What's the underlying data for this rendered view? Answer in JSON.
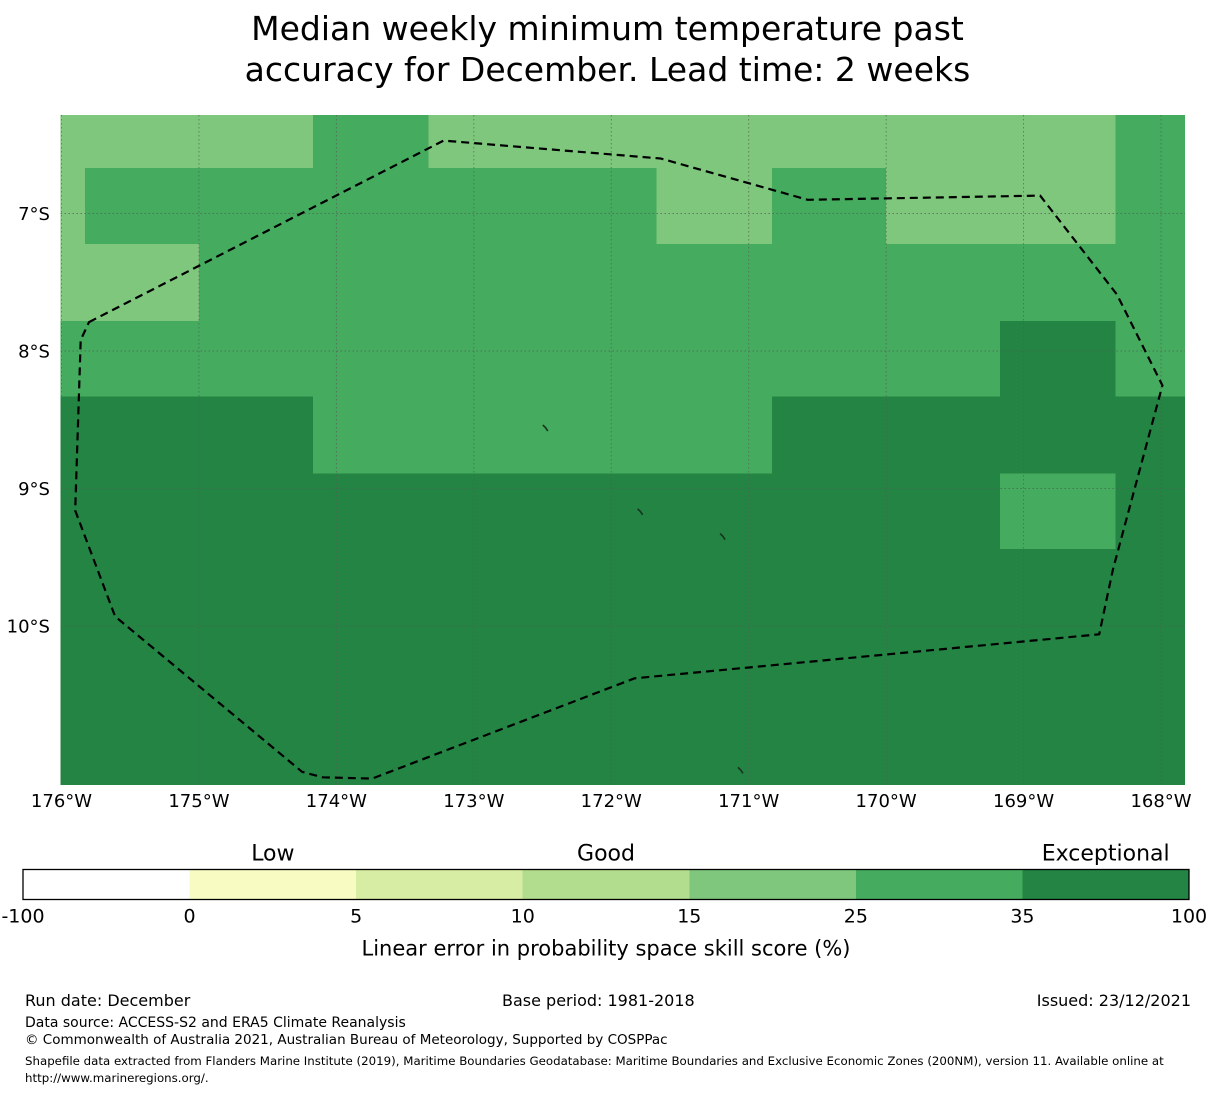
{
  "title": {
    "line1": "Median weekly minimum temperature past",
    "line2": "accuracy for December. Lead time: 2 weeks"
  },
  "footer": {
    "run_date": "Run date: December",
    "base_period": "Base period: 1981-2018",
    "issued": "Issued: 23/12/2021",
    "data_source": "Data source: ACCESS-S2 and ERA5 Climate Reanalysis",
    "copyright": "© Commonwealth of Australia 2021, Australian Bureau of Meteorology, Supported by COSPPac",
    "shapefile_note": "Shapefile data extracted from Flanders Marine Institute (2019), Maritime Boundaries Geodatabase: Maritime Boundaries and Exclusive Economic Zones (200NM), version 11. Available online at http://www.marineregions.org/."
  },
  "chart_data": {
    "type": "heatmap",
    "title": "Median weekly minimum temperature past accuracy for December. Lead time: 2 weeks",
    "x_axis": {
      "tick_labels": [
        "176°W",
        "175°W",
        "174°W",
        "173°W",
        "172°W",
        "171°W",
        "170°W",
        "169°W",
        "168°W"
      ],
      "tick_lons": [
        176,
        175,
        174,
        173,
        172,
        171,
        170,
        169,
        168
      ]
    },
    "y_axis": {
      "tick_labels": [
        "7°S",
        "8°S",
        "9°S",
        "10°S"
      ],
      "tick_lats": [
        7,
        8,
        9,
        10
      ]
    },
    "map_bounds": {
      "lon_west": 176.01,
      "lon_east": 167.82,
      "lat_north": 6.28,
      "lat_south": 11.16
    },
    "grid_on": true,
    "rows": [
      {
        "lat_n": 6.28,
        "lat_s": 6.67,
        "segs": [
          [
            176.01,
            174.17,
            "15-25"
          ],
          [
            174.17,
            173.33,
            "25-35"
          ],
          [
            173.33,
            168.33,
            "15-25"
          ],
          [
            168.33,
            167.82,
            "25-35"
          ]
        ]
      },
      {
        "lat_n": 6.67,
        "lat_s": 7.22,
        "segs": [
          [
            176.01,
            175.83,
            "15-25"
          ],
          [
            175.83,
            171.67,
            "25-35"
          ],
          [
            171.67,
            170.83,
            "15-25"
          ],
          [
            170.83,
            170.0,
            "25-35"
          ],
          [
            170.0,
            168.33,
            "15-25"
          ],
          [
            168.33,
            167.82,
            "25-35"
          ]
        ]
      },
      {
        "lat_n": 7.22,
        "lat_s": 7.78,
        "segs": [
          [
            176.01,
            175.0,
            "15-25"
          ],
          [
            175.0,
            167.82,
            "25-35"
          ]
        ]
      },
      {
        "lat_n": 7.78,
        "lat_s": 8.33,
        "segs": [
          [
            176.01,
            169.17,
            "25-35"
          ],
          [
            169.17,
            168.33,
            "35-100"
          ],
          [
            168.33,
            167.82,
            "25-35"
          ]
        ]
      },
      {
        "lat_n": 8.33,
        "lat_s": 8.89,
        "segs": [
          [
            176.01,
            174.17,
            "35-100"
          ],
          [
            174.17,
            170.83,
            "25-35"
          ],
          [
            170.83,
            167.82,
            "35-100"
          ]
        ]
      },
      {
        "lat_n": 8.89,
        "lat_s": 9.44,
        "segs": [
          [
            176.01,
            169.17,
            "35-100"
          ],
          [
            169.17,
            168.33,
            "25-35"
          ],
          [
            168.33,
            167.82,
            "35-100"
          ]
        ]
      },
      {
        "lat_n": 9.44,
        "lat_s": 11.16,
        "segs": [
          [
            176.01,
            167.82,
            "35-100"
          ]
        ]
      }
    ],
    "eez_boundary_lonlat": [
      [
        175.8,
        7.79
      ],
      [
        173.22,
        6.47
      ],
      [
        171.64,
        6.6
      ],
      [
        170.57,
        6.9
      ],
      [
        168.88,
        6.87
      ],
      [
        168.32,
        7.59
      ],
      [
        167.99,
        8.25
      ],
      [
        168.35,
        9.59
      ],
      [
        168.45,
        10.06
      ],
      [
        171.83,
        10.38
      ],
      [
        173.74,
        11.11
      ],
      [
        174.1,
        11.1
      ],
      [
        174.25,
        11.06
      ],
      [
        175.61,
        9.93
      ],
      [
        175.9,
        9.16
      ],
      [
        175.86,
        7.92
      ]
    ],
    "islands_lonlat": [
      [
        172.48,
        8.56
      ],
      [
        171.79,
        9.17
      ],
      [
        171.19,
        9.35
      ],
      [
        171.06,
        11.05
      ]
    ],
    "colorbar": {
      "bins": [
        {
          "key": "-100-0",
          "range": "-100 to 0",
          "color": "#ffffff"
        },
        {
          "key": "0-5",
          "range": "0 to 5",
          "color": "#f8fcc2"
        },
        {
          "key": "5-10",
          "range": "5 to 10",
          "color": "#d8eda4"
        },
        {
          "key": "10-15",
          "range": "10 to 15",
          "color": "#b2dc8e"
        },
        {
          "key": "15-25",
          "range": "15 to 25",
          "color": "#7ec77d"
        },
        {
          "key": "25-35",
          "range": "25 to 35",
          "color": "#45ab5e"
        },
        {
          "key": "35-100",
          "range": "35 to 100",
          "color": "#238443"
        }
      ],
      "ticks": [
        "-100",
        "0",
        "5",
        "10",
        "15",
        "25",
        "35",
        "100"
      ],
      "section_labels": [
        {
          "text": "Low",
          "bin_index": 1
        },
        {
          "text": "Good",
          "bin_index": 3
        },
        {
          "text": "Exceptional",
          "bin_index": 6
        }
      ],
      "axis_label": "Linear error in probability space skill score (%)"
    }
  }
}
